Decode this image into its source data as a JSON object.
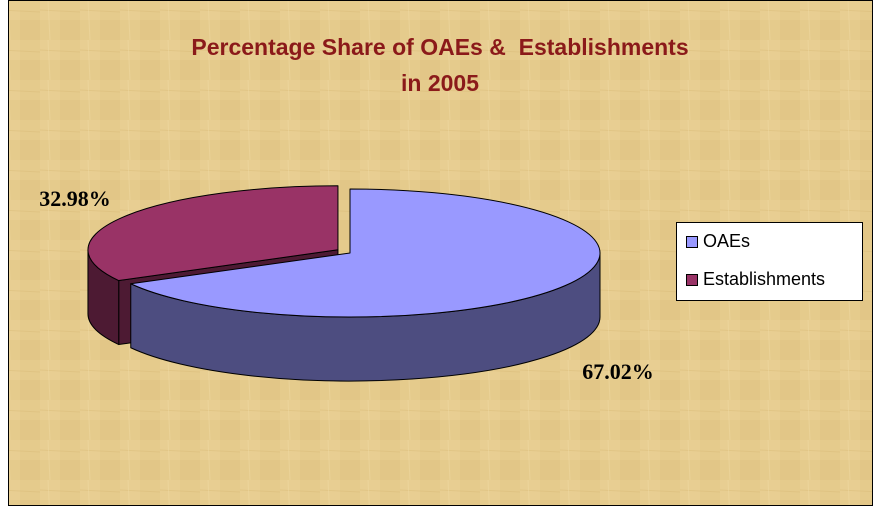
{
  "chart_data": {
    "type": "pie3d",
    "title": [
      "Percentage Share of OAEs &  Establishments",
      "in 2005"
    ],
    "categories": [
      "OAEs",
      "Establishments"
    ],
    "values": [
      67.02,
      32.98
    ],
    "value_labels": [
      "67.02%",
      "32.98%"
    ],
    "colors": [
      "#9999ff",
      "#993366"
    ],
    "legend": "right"
  }
}
